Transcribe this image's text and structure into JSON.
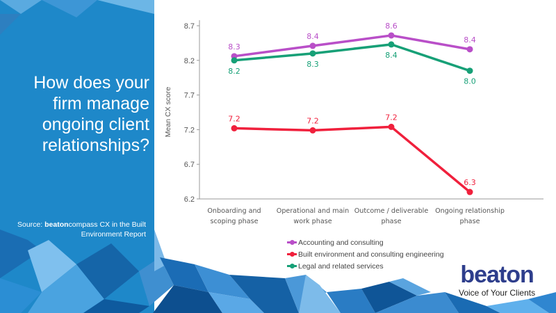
{
  "slide": {
    "title": "How does your firm manage ongoing client relationships?",
    "source_prefix": "Source: ",
    "source_brand": "beaton",
    "source_rest": "compass CX in the Built Environment Report"
  },
  "logo": {
    "word": "beaton",
    "tagline": "Voice of Your Clients"
  },
  "colors": {
    "panel": "#1e88c9",
    "accent_dark": "#2e3e8c"
  },
  "chart_data": {
    "type": "line",
    "title": "",
    "xlabel": "",
    "ylabel": "Mean CX score",
    "ylim": [
      6.2,
      8.7
    ],
    "yticks": [
      "6.2",
      "6.7",
      "7.2",
      "7.7",
      "8.2",
      "8.7"
    ],
    "grid": false,
    "legend_position": "bottom",
    "categories": [
      "Onboarding and scoping phase",
      "Operational and main work phase",
      "Outcome / deliverable phase",
      "Ongoing relationship phase"
    ],
    "category_lines": [
      [
        "Onboarding and",
        "scoping phase"
      ],
      [
        "Operational and main",
        "work phase"
      ],
      [
        "Outcome / deliverable",
        "phase"
      ],
      [
        "Ongoing relationship",
        "phase"
      ]
    ],
    "series": [
      {
        "name": "Accounting and consulting",
        "color": "#b94fc8",
        "values": [
          8.26,
          8.41,
          8.56,
          8.36
        ],
        "labels": [
          "8.3",
          "8.4",
          "8.6",
          "8.4"
        ],
        "label_pos": [
          "above",
          "above",
          "above",
          "above"
        ]
      },
      {
        "name": "Built environment and consulting engineering",
        "color": "#f0203c",
        "values": [
          7.22,
          7.19,
          7.24,
          6.3
        ],
        "labels": [
          "7.2",
          "7.2",
          "7.2",
          "6.3"
        ],
        "label_pos": [
          "above",
          "above",
          "above",
          "above"
        ]
      },
      {
        "name": "Legal and related services",
        "color": "#17a077",
        "values": [
          8.2,
          8.3,
          8.43,
          8.05
        ],
        "labels": [
          "8.2",
          "8.3",
          "8.4",
          "8.0"
        ],
        "label_pos": [
          "below",
          "below",
          "below",
          "below"
        ]
      }
    ]
  }
}
